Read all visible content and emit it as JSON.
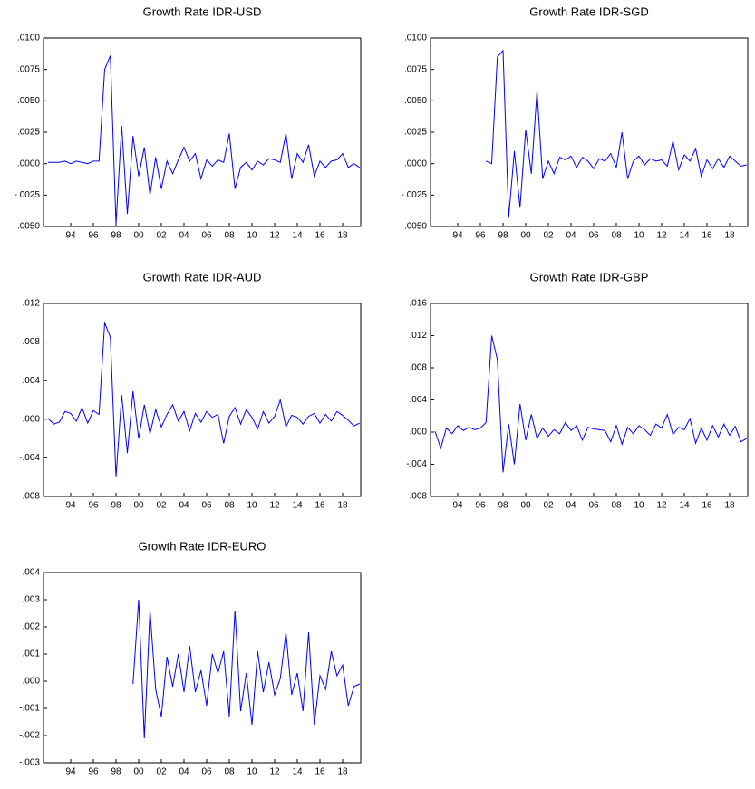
{
  "chart_data": [
    {
      "type": "line",
      "title": "Growth Rate IDR-USD",
      "x": [
        1992,
        1992.5,
        1993,
        1993.5,
        1994,
        1994.5,
        1995,
        1995.5,
        1996,
        1996.5,
        1997,
        1997.5,
        1998,
        1998.5,
        1999,
        1999.5,
        2000,
        2000.5,
        2001,
        2001.5,
        2002,
        2002.5,
        2003,
        2003.5,
        2004,
        2004.5,
        2005,
        2005.5,
        2006,
        2006.5,
        2007,
        2007.5,
        2008,
        2008.5,
        2009,
        2009.5,
        2010,
        2010.5,
        2011,
        2011.5,
        2012,
        2012.5,
        2013,
        2013.5,
        2014,
        2014.5,
        2015,
        2015.5,
        2016,
        2016.5,
        2017,
        2017.5,
        2018,
        2018.5,
        2019,
        2019.5
      ],
      "series": [
        {
          "color": "#0000ff",
          "values": [
            0.0001,
            0.0001,
            0.0001,
            0.0002,
            0,
            0.0002,
            0.0001,
            0,
            0.0002,
            0.0002,
            0.0075,
            0.0086,
            -0.0048,
            0.003,
            -0.004,
            0.0022,
            -0.001,
            0.0013,
            -0.0025,
            0.0005,
            -0.002,
            0.0002,
            -0.0008,
            0.0003,
            0.0013,
            0.0002,
            0.0008,
            -0.0012,
            0.0003,
            -0.0002,
            0.0003,
            0.0001,
            0.0024,
            -0.002,
            -0.0003,
            0.0001,
            -0.0005,
            0.0002,
            -0.0001,
            0.0004,
            0.0003,
            0.0001,
            0.0024,
            -0.0012,
            0.0008,
            0.0001,
            0.0015,
            -0.001,
            0.0002,
            -0.0003,
            0.0002,
            0.0003,
            0.0008,
            -0.0003,
            0,
            -0.0003
          ]
        }
      ],
      "xlim": [
        1991.6,
        2019.6
      ],
      "xticks": [
        {
          "value": 1994,
          "label": "94"
        },
        {
          "value": 1996,
          "label": "96"
        },
        {
          "value": 1998,
          "label": "98"
        },
        {
          "value": 2000,
          "label": "00"
        },
        {
          "value": 2002,
          "label": "02"
        },
        {
          "value": 2004,
          "label": "04"
        },
        {
          "value": 2006,
          "label": "06"
        },
        {
          "value": 2008,
          "label": "08"
        },
        {
          "value": 2010,
          "label": "10"
        },
        {
          "value": 2012,
          "label": "12"
        },
        {
          "value": 2014,
          "label": "14"
        },
        {
          "value": 2016,
          "label": "16"
        },
        {
          "value": 2018,
          "label": "18"
        }
      ],
      "ylim": [
        -0.005,
        0.01
      ],
      "yticks": [
        {
          "value": 0.01,
          "label": ".0100"
        },
        {
          "value": 0.0075,
          "label": ".0075"
        },
        {
          "value": 0.005,
          "label": ".0050"
        },
        {
          "value": 0.0025,
          "label": ".0025"
        },
        {
          "value": 0,
          "label": ".0000"
        },
        {
          "value": -0.0025,
          "label": "-.0025"
        },
        {
          "value": -0.005,
          "label": "-.0050"
        }
      ]
    },
    {
      "type": "line",
      "title": "Growth Rate IDR-SGD",
      "x": [
        1996.5,
        1997,
        1997.5,
        1998,
        1998.5,
        1999,
        1999.5,
        2000,
        2000.5,
        2001,
        2001.5,
        2002,
        2002.5,
        2003,
        2003.5,
        2004,
        2004.5,
        2005,
        2005.5,
        2006,
        2006.5,
        2007,
        2007.5,
        2008,
        2008.5,
        2009,
        2009.5,
        2010,
        2010.5,
        2011,
        2011.5,
        2012,
        2012.5,
        2013,
        2013.5,
        2014,
        2014.5,
        2015,
        2015.5,
        2016,
        2016.5,
        2017,
        2017.5,
        2018,
        2018.5,
        2019,
        2019.5
      ],
      "series": [
        {
          "color": "#0000ff",
          "values": [
            0.0002,
            0,
            0.0085,
            0.009,
            -0.0043,
            0.001,
            -0.0035,
            0.0027,
            -0.0008,
            0.0058,
            -0.0012,
            0.0002,
            -0.0008,
            0.0005,
            0.0003,
            0.0006,
            -0.0003,
            0.0005,
            0.0002,
            -0.0004,
            0.0004,
            0.0002,
            0.0008,
            -0.0003,
            0.0025,
            -0.0012,
            0.0002,
            0.0006,
            -0.0001,
            0.0004,
            0.0002,
            0.0003,
            -0.0002,
            0.0018,
            -0.0005,
            0.0007,
            0.0002,
            0.0012,
            -0.001,
            0.0003,
            -0.0004,
            0.0004,
            -0.0003,
            0.0006,
            0.0002,
            -0.0002,
            -0.0001
          ]
        }
      ],
      "xlim": [
        1991.6,
        2019.6
      ],
      "xticks": [
        {
          "value": 1994,
          "label": "94"
        },
        {
          "value": 1996,
          "label": "96"
        },
        {
          "value": 1998,
          "label": "98"
        },
        {
          "value": 2000,
          "label": "00"
        },
        {
          "value": 2002,
          "label": "02"
        },
        {
          "value": 2004,
          "label": "04"
        },
        {
          "value": 2006,
          "label": "06"
        },
        {
          "value": 2008,
          "label": "08"
        },
        {
          "value": 2010,
          "label": "10"
        },
        {
          "value": 2012,
          "label": "12"
        },
        {
          "value": 2014,
          "label": "14"
        },
        {
          "value": 2016,
          "label": "16"
        },
        {
          "value": 2018,
          "label": "18"
        }
      ],
      "ylim": [
        -0.005,
        0.01
      ],
      "yticks": [
        {
          "value": 0.01,
          "label": ".0100"
        },
        {
          "value": 0.0075,
          "label": ".0075"
        },
        {
          "value": 0.005,
          "label": ".0050"
        },
        {
          "value": 0.0025,
          "label": ".0025"
        },
        {
          "value": 0,
          "label": ".0000"
        },
        {
          "value": -0.0025,
          "label": "-.0025"
        },
        {
          "value": -0.005,
          "label": "-.0050"
        }
      ]
    },
    {
      "type": "line",
      "title": "Growth Rate IDR-AUD",
      "x": [
        1992,
        1992.5,
        1993,
        1993.5,
        1994,
        1994.5,
        1995,
        1995.5,
        1996,
        1996.5,
        1997,
        1997.5,
        1998,
        1998.5,
        1999,
        1999.5,
        2000,
        2000.5,
        2001,
        2001.5,
        2002,
        2002.5,
        2003,
        2003.5,
        2004,
        2004.5,
        2005,
        2005.5,
        2006,
        2006.5,
        2007,
        2007.5,
        2008,
        2008.5,
        2009,
        2009.5,
        2010,
        2010.5,
        2011,
        2011.5,
        2012,
        2012.5,
        2013,
        2013.5,
        2014,
        2014.5,
        2015,
        2015.5,
        2016,
        2016.5,
        2017,
        2017.5,
        2018,
        2018.5,
        2019,
        2019.5
      ],
      "series": [
        {
          "color": "#0000ff",
          "values": [
            0.0001,
            -0.0005,
            -0.0003,
            0.0008,
            0.0006,
            -0.0002,
            0.0012,
            -0.0004,
            0.0009,
            0.0005,
            0.01,
            0.0085,
            -0.006,
            0.0025,
            -0.0035,
            0.0029,
            -0.002,
            0.0015,
            -0.0015,
            0.001,
            -0.0008,
            0.0005,
            0.0015,
            -0.0002,
            0.0008,
            -0.0012,
            0.0006,
            -0.0003,
            0.0008,
            0.0002,
            0.0005,
            -0.0025,
            0.0003,
            0.0012,
            -0.0005,
            0.001,
            0.0002,
            -0.001,
            0.0008,
            -0.0004,
            0.0003,
            0.002,
            -0.0008,
            0.0004,
            0.0002,
            -0.0005,
            0.0003,
            0.0006,
            -0.0004,
            0.0005,
            -0.0002,
            0.0008,
            0.0004,
            -0.0001,
            -0.0007,
            -0.0004
          ]
        }
      ],
      "xlim": [
        1991.6,
        2019.6
      ],
      "xticks": [
        {
          "value": 1994,
          "label": "94"
        },
        {
          "value": 1996,
          "label": "96"
        },
        {
          "value": 1998,
          "label": "98"
        },
        {
          "value": 2000,
          "label": "00"
        },
        {
          "value": 2002,
          "label": "02"
        },
        {
          "value": 2004,
          "label": "04"
        },
        {
          "value": 2006,
          "label": "06"
        },
        {
          "value": 2008,
          "label": "08"
        },
        {
          "value": 2010,
          "label": "10"
        },
        {
          "value": 2012,
          "label": "12"
        },
        {
          "value": 2014,
          "label": "14"
        },
        {
          "value": 2016,
          "label": "16"
        },
        {
          "value": 2018,
          "label": "18"
        }
      ],
      "ylim": [
        -0.008,
        0.012
      ],
      "yticks": [
        {
          "value": 0.012,
          "label": ".012"
        },
        {
          "value": 0.008,
          "label": ".008"
        },
        {
          "value": 0.004,
          "label": ".004"
        },
        {
          "value": 0,
          "label": ".000"
        },
        {
          "value": -0.004,
          "label": "-.004"
        },
        {
          "value": -0.008,
          "label": "-.008"
        }
      ]
    },
    {
      "type": "line",
      "title": "Growth Rate IDR-GBP",
      "x": [
        1992,
        1992.5,
        1993,
        1993.5,
        1994,
        1994.5,
        1995,
        1995.5,
        1996,
        1996.5,
        1997,
        1997.5,
        1998,
        1998.5,
        1999,
        1999.5,
        2000,
        2000.5,
        2001,
        2001.5,
        2002,
        2002.5,
        2003,
        2003.5,
        2004,
        2004.5,
        2005,
        2005.5,
        2006,
        2006.5,
        2007,
        2007.5,
        2008,
        2008.5,
        2009,
        2009.5,
        2010,
        2010.5,
        2011,
        2011.5,
        2012,
        2012.5,
        2013,
        2013.5,
        2014,
        2014.5,
        2015,
        2015.5,
        2016,
        2016.5,
        2017,
        2017.5,
        2018,
        2018.5,
        2019,
        2019.5
      ],
      "series": [
        {
          "color": "#0000ff",
          "values": [
            0.0001,
            -0.002,
            0.0005,
            -0.0002,
            0.0008,
            0.0002,
            0.0006,
            0.0003,
            0.0005,
            0.0012,
            0.012,
            0.009,
            -0.005,
            0.001,
            -0.004,
            0.0035,
            -0.001,
            0.0022,
            -0.0008,
            0.0005,
            -0.0005,
            0.0003,
            -0.0002,
            0.0012,
            0.0002,
            0.0008,
            -0.001,
            0.0006,
            0.0004,
            0.0003,
            0.0002,
            -0.0012,
            0.0008,
            -0.0015,
            0.0006,
            -0.0002,
            0.0008,
            0.0003,
            -0.0004,
            0.001,
            0.0005,
            0.0022,
            -0.0003,
            0.0006,
            0.0003,
            0.0017,
            -0.0014,
            0.0005,
            -0.001,
            0.0008,
            -0.0006,
            0.001,
            -0.0004,
            0.0007,
            -0.0012,
            -0.0008
          ]
        }
      ],
      "xlim": [
        1991.6,
        2019.6
      ],
      "xticks": [
        {
          "value": 1994,
          "label": "94"
        },
        {
          "value": 1996,
          "label": "96"
        },
        {
          "value": 1998,
          "label": "98"
        },
        {
          "value": 2000,
          "label": "00"
        },
        {
          "value": 2002,
          "label": "02"
        },
        {
          "value": 2004,
          "label": "04"
        },
        {
          "value": 2006,
          "label": "06"
        },
        {
          "value": 2008,
          "label": "08"
        },
        {
          "value": 2010,
          "label": "10"
        },
        {
          "value": 2012,
          "label": "12"
        },
        {
          "value": 2014,
          "label": "14"
        },
        {
          "value": 2016,
          "label": "16"
        },
        {
          "value": 2018,
          "label": "18"
        }
      ],
      "ylim": [
        -0.008,
        0.016
      ],
      "yticks": [
        {
          "value": 0.016,
          "label": ".016"
        },
        {
          "value": 0.012,
          "label": ".012"
        },
        {
          "value": 0.008,
          "label": ".008"
        },
        {
          "value": 0.004,
          "label": ".004"
        },
        {
          "value": 0,
          "label": ".000"
        },
        {
          "value": -0.004,
          "label": "-.004"
        },
        {
          "value": -0.008,
          "label": "-.008"
        }
      ]
    },
    {
      "type": "line",
      "title": "Growth Rate IDR-EURO",
      "x": [
        1999.5,
        2000,
        2000.5,
        2001,
        2001.5,
        2002,
        2002.5,
        2003,
        2003.5,
        2004,
        2004.5,
        2005,
        2005.5,
        2006,
        2006.5,
        2007,
        2007.5,
        2008,
        2008.5,
        2009,
        2009.5,
        2010,
        2010.5,
        2011,
        2011.5,
        2012,
        2012.5,
        2013,
        2013.5,
        2014,
        2014.5,
        2015,
        2015.5,
        2016,
        2016.5,
        2017,
        2017.5,
        2018,
        2018.5,
        2019,
        2019.5
      ],
      "series": [
        {
          "color": "#0000ff",
          "values": [
            -0.0001,
            0.003,
            -0.0021,
            0.0026,
            -0.0003,
            -0.0013,
            0.0009,
            -0.0002,
            0.001,
            -0.0004,
            0.0013,
            -0.0004,
            0.0004,
            -0.0009,
            0.001,
            0.0003,
            0.0011,
            -0.0013,
            0.0026,
            -0.0011,
            0.0003,
            -0.0016,
            0.0011,
            -0.0004,
            0.0007,
            -0.0005,
            0.0001,
            0.0018,
            -0.0005,
            0.0003,
            -0.0011,
            0.0018,
            -0.0016,
            0.0002,
            -0.0003,
            0.0011,
            0.0002,
            0.0006,
            -0.0009,
            -0.0002,
            -0.0001
          ]
        }
      ],
      "xlim": [
        1991.6,
        2019.6
      ],
      "xticks": [
        {
          "value": 1994,
          "label": "94"
        },
        {
          "value": 1996,
          "label": "96"
        },
        {
          "value": 1998,
          "label": "98"
        },
        {
          "value": 2000,
          "label": "00"
        },
        {
          "value": 2002,
          "label": "02"
        },
        {
          "value": 2004,
          "label": "04"
        },
        {
          "value": 2006,
          "label": "06"
        },
        {
          "value": 2008,
          "label": "08"
        },
        {
          "value": 2010,
          "label": "10"
        },
        {
          "value": 2012,
          "label": "12"
        },
        {
          "value": 2014,
          "label": "14"
        },
        {
          "value": 2016,
          "label": "16"
        },
        {
          "value": 2018,
          "label": "18"
        }
      ],
      "ylim": [
        -0.003,
        0.004
      ],
      "yticks": [
        {
          "value": 0.004,
          "label": ".004"
        },
        {
          "value": 0.003,
          "label": ".003"
        },
        {
          "value": 0.002,
          "label": ".002"
        },
        {
          "value": 0.001,
          "label": ".001"
        },
        {
          "value": 0,
          "label": ".000"
        },
        {
          "value": -0.001,
          "label": "-.001"
        },
        {
          "value": -0.002,
          "label": "-.002"
        },
        {
          "value": -0.003,
          "label": "-.003"
        }
      ]
    }
  ]
}
